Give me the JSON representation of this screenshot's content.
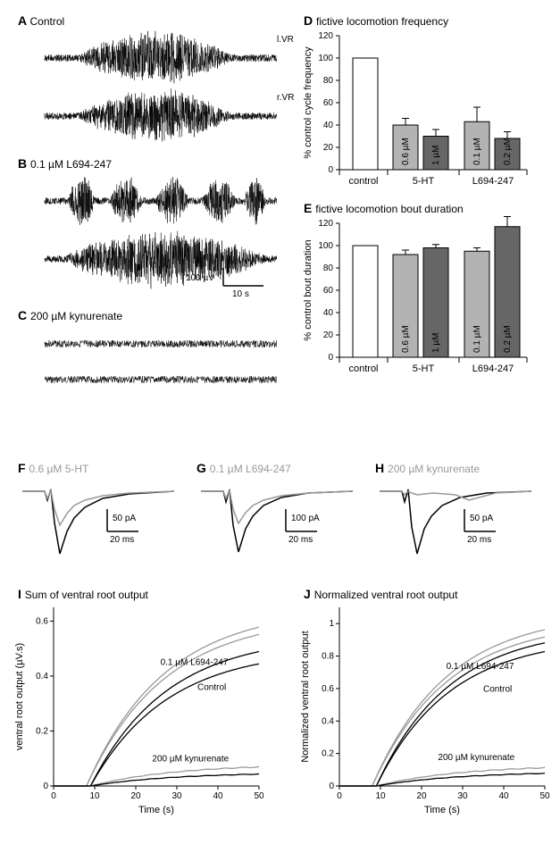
{
  "colors": {
    "black": "#000000",
    "white": "#ffffff",
    "light_gray": "#b3b3b3",
    "dark_gray": "#666666",
    "trace_gray": "#999999"
  },
  "panelA": {
    "label": "A",
    "sublabel": "Control",
    "trace1_label": "l.VR",
    "trace2_label": "r.VR"
  },
  "panelB": {
    "label": "B",
    "sublabel": "0.1 µM L694-247",
    "scale_v": "100 µV",
    "scale_h": "10 s"
  },
  "panelC": {
    "label": "C",
    "sublabel": "200 µM kynurenate"
  },
  "panelD": {
    "label": "D",
    "title": "fictive locomotion frequency",
    "ylabel": "% control cycle frequency",
    "ylim": [
      0,
      120
    ],
    "yticks": [
      0,
      20,
      40,
      60,
      80,
      100,
      120
    ],
    "groups": [
      "control",
      "5-HT",
      "L694-247"
    ],
    "bars": [
      {
        "value": 100,
        "err": 0,
        "fill": "#ffffff",
        "label": ""
      },
      {
        "value": 40,
        "err": 6,
        "fill": "#b3b3b3",
        "label": "0.6 µM"
      },
      {
        "value": 30,
        "err": 6,
        "fill": "#666666",
        "label": "1 µM"
      },
      {
        "value": 43,
        "err": 13,
        "fill": "#b3b3b3",
        "label": "0.1 µM"
      },
      {
        "value": 28,
        "err": 6,
        "fill": "#666666",
        "label": "0.2 µM"
      }
    ]
  },
  "panelE": {
    "label": "E",
    "title": "fictive locomotion bout duration",
    "ylabel": "% control bout duration",
    "ylim": [
      0,
      120
    ],
    "yticks": [
      0,
      20,
      40,
      60,
      80,
      100,
      120
    ],
    "groups": [
      "control",
      "5-HT",
      "L694-247"
    ],
    "bars": [
      {
        "value": 100,
        "err": 0,
        "fill": "#ffffff",
        "label": ""
      },
      {
        "value": 92,
        "err": 4,
        "fill": "#b3b3b3",
        "label": "0.6 µM"
      },
      {
        "value": 98,
        "err": 3,
        "fill": "#666666",
        "label": "1 µM"
      },
      {
        "value": 95,
        "err": 3,
        "fill": "#b3b3b3",
        "label": "0.1 µM"
      },
      {
        "value": 117,
        "err": 9,
        "fill": "#666666",
        "label": "0.2 µM"
      }
    ]
  },
  "panelF": {
    "label": "F",
    "sublabel": "0.6 µM 5-HT",
    "scale_v": "50 pA",
    "scale_h": "20 ms"
  },
  "panelG": {
    "label": "G",
    "sublabel": "0.1 µM L694-247",
    "scale_v": "100 pA",
    "scale_h": "20 ms"
  },
  "panelH": {
    "label": "H",
    "sublabel": "200 µM kynurenate",
    "scale_v": "50 pA",
    "scale_h": "20 ms"
  },
  "panelI": {
    "label": "I",
    "title": "Sum of ventral root output",
    "xlabel": "Time (s)",
    "ylabel": "ventral root output (µV.s)",
    "xlim": [
      0,
      50
    ],
    "ylim": [
      0,
      0.65
    ],
    "xticks": [
      0,
      10,
      20,
      30,
      40,
      50
    ],
    "yticks": [
      0,
      0.2,
      0.4,
      0.6
    ],
    "curve_labels": {
      "l694": "0.1 µM L694-247",
      "control": "Control",
      "kyn": "200 µM kynurenate"
    }
  },
  "panelJ": {
    "label": "J",
    "title": "Normalized ventral root output",
    "xlabel": "Time (s)",
    "ylabel": "Normalized ventral root output",
    "xlim": [
      0,
      50
    ],
    "ylim": [
      0,
      1.1
    ],
    "xticks": [
      0,
      10,
      20,
      30,
      40,
      50
    ],
    "yticks": [
      0,
      0.2,
      0.4,
      0.6,
      0.8,
      1.0
    ],
    "curve_labels": {
      "l694": "0.1 µM L694-247",
      "control": "Control",
      "kyn": "200 µM kynurenate"
    }
  }
}
